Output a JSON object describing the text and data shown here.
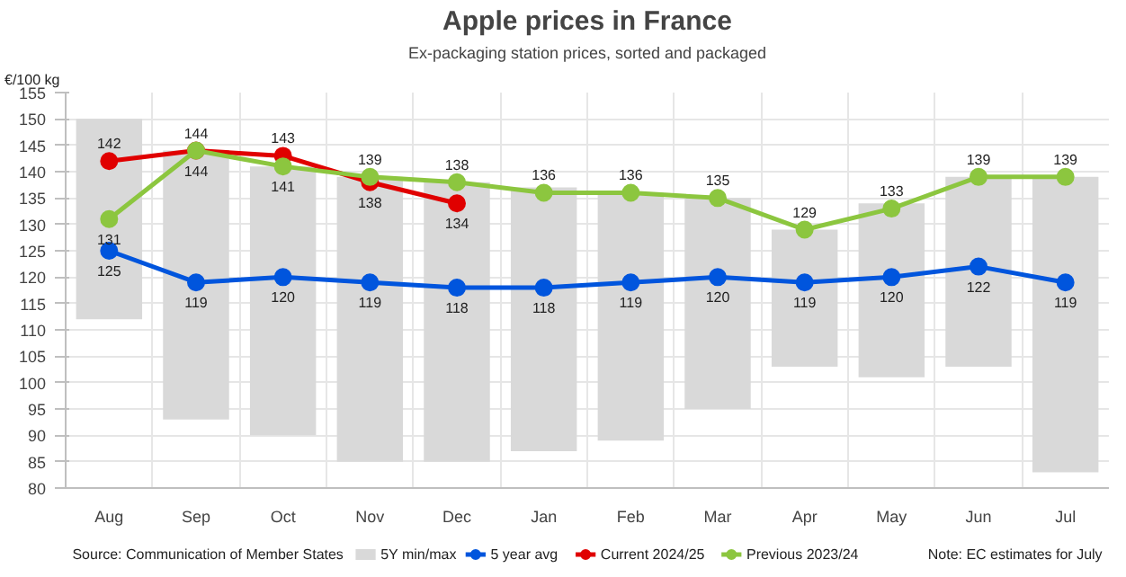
{
  "chart_data": {
    "type": "line",
    "title": "Apple prices in France",
    "subtitle": "Ex-packaging station prices, sorted and packaged",
    "ylabel": "€/100 kg",
    "categories": [
      "Aug",
      "Sep",
      "Oct",
      "Nov",
      "Dec",
      "Jan",
      "Feb",
      "Mar",
      "Apr",
      "May",
      "Jun",
      "Jul"
    ],
    "series": [
      {
        "name": "5Y min/max",
        "type": "bar",
        "color": "#d9d9d9",
        "base": [
          112,
          93,
          90,
          85,
          85,
          87,
          89,
          95,
          103,
          101,
          103,
          83
        ],
        "values": [
          38,
          51,
          51,
          54,
          53,
          50,
          47,
          40,
          26,
          33,
          36,
          56
        ]
      },
      {
        "name": "5 year avg",
        "color": "#0055dd",
        "values": [
          125,
          119,
          120,
          119,
          118,
          118,
          119,
          120,
          119,
          120,
          122,
          119
        ],
        "value_labels": [
          "125",
          "119",
          "120",
          "119",
          "118",
          "118",
          "119",
          "120",
          "119",
          "120",
          "122",
          "119"
        ]
      },
      {
        "name": "Current 2024/25",
        "color": "#e00000",
        "values": [
          142,
          144,
          143,
          138,
          134,
          null,
          null,
          null,
          null,
          null,
          null,
          null
        ],
        "value_labels": [
          "142",
          "144",
          "143",
          "138",
          "134",
          null,
          null,
          null,
          null,
          null,
          null,
          null
        ]
      },
      {
        "name": "Previous 2023/24",
        "color": "#8cc63f",
        "values": [
          131,
          144,
          141,
          139,
          138,
          136,
          136,
          135,
          129,
          133,
          139,
          139
        ],
        "value_labels": [
          "131",
          "144",
          "141",
          "139",
          "138",
          "136",
          "136",
          "135",
          "129",
          "133",
          "139",
          "139"
        ]
      }
    ],
    "marker": "circle",
    "line_style": "solid",
    "ylim": [
      80,
      155
    ],
    "yticks": [
      80,
      85,
      90,
      95,
      100,
      105,
      110,
      115,
      120,
      125,
      130,
      135,
      140,
      145,
      150,
      155
    ],
    "grid": true,
    "legend": "bottom",
    "annotations": [
      "Source: Communication of Member States",
      "Note: EC estimates for July"
    ]
  }
}
